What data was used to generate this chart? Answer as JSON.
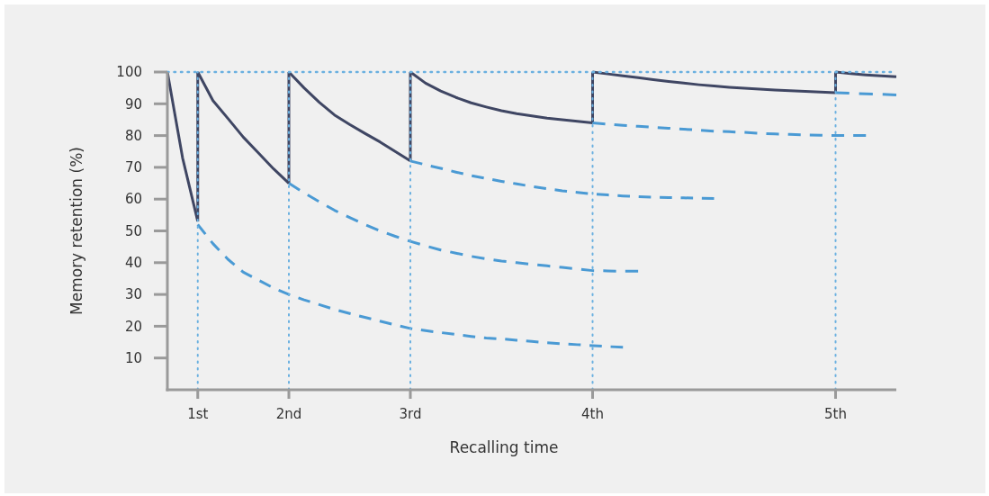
{
  "chart_data": {
    "type": "line",
    "xlabel": "Recalling time",
    "ylabel": "Memory retention (%)",
    "categories": [
      null,
      null,
      "1st",
      null,
      null,
      null,
      null,
      null,
      "2nd",
      null,
      null,
      null,
      null,
      null,
      null,
      null,
      "3rd",
      null,
      null,
      null,
      null,
      null,
      null,
      null,
      null,
      null,
      null,
      null,
      "4th",
      null,
      null,
      null,
      null,
      null,
      null,
      null,
      null,
      null,
      null,
      null,
      null,
      null,
      null,
      null,
      "5th",
      null,
      null,
      null,
      null
    ],
    "ylim": [
      0,
      100
    ],
    "yticks": [
      10,
      20,
      30,
      40,
      50,
      60,
      70,
      80,
      90,
      100
    ],
    "grid": false,
    "marker": "none",
    "ref_lines": [
      {
        "axis": "x",
        "value": "1st",
        "color": "#6ab0e0",
        "line_style": "dotted"
      },
      {
        "axis": "x",
        "value": "2nd",
        "color": "#6ab0e0",
        "line_style": "dotted"
      },
      {
        "axis": "x",
        "value": "3rd",
        "color": "#6ab0e0",
        "line_style": "dotted"
      },
      {
        "axis": "x",
        "value": "4th",
        "color": "#6ab0e0",
        "line_style": "dotted"
      },
      {
        "axis": "x",
        "value": "5th",
        "color": "#6ab0e0",
        "line_style": "dotted"
      },
      {
        "axis": "y",
        "value": 100,
        "color": "#6ab0e0",
        "line_style": "dotted"
      }
    ],
    "series": [
      {
        "type": "line",
        "color": "#3f4663",
        "line_style": "solid",
        "values": [
          100,
          73,
          53,
          null,
          null,
          null,
          null,
          null,
          null,
          null,
          null,
          null,
          null,
          null,
          null,
          null,
          null,
          null,
          null,
          null,
          null,
          null,
          null,
          null,
          null,
          null,
          null,
          null,
          null,
          null,
          null,
          null,
          null,
          null,
          null,
          null,
          null,
          null,
          null,
          null,
          null,
          null,
          null,
          null,
          null,
          null,
          null,
          null,
          null
        ]
      },
      {
        "color": "#3f4663",
        "line_style": "solid",
        "x": [
          "1st",
          "1st"
        ],
        "values": [
          53,
          100
        ]
      },
      {
        "color": "#3f4663",
        "line_style": "solid",
        "values": [
          null,
          null,
          100,
          91,
          85.3,
          79.5,
          74.5,
          69.5,
          65,
          null,
          null,
          null,
          null,
          null,
          null,
          null,
          null,
          null,
          null,
          null,
          null,
          null,
          null,
          null,
          null,
          null,
          null,
          null,
          null,
          null,
          null,
          null,
          null,
          null,
          null,
          null,
          null,
          null,
          null,
          null,
          null,
          null,
          null,
          null,
          null,
          null,
          null,
          null,
          null
        ]
      },
      {
        "color": "#3f4663",
        "line_style": "solid",
        "x": [
          "2nd",
          "2nd"
        ],
        "values": [
          65,
          100
        ]
      },
      {
        "color": "#3f4663",
        "line_style": "solid",
        "values": [
          null,
          null,
          null,
          null,
          null,
          null,
          null,
          null,
          100,
          95,
          90.5,
          86.5,
          83.5,
          80.7,
          78,
          75,
          72,
          null,
          null,
          null,
          null,
          null,
          null,
          null,
          null,
          null,
          null,
          null,
          null,
          null,
          null,
          null,
          null,
          null,
          null,
          null,
          null,
          null,
          null,
          null,
          null,
          null,
          null,
          null,
          null,
          null,
          null,
          null,
          null
        ]
      },
      {
        "color": "#3f4663",
        "line_style": "solid",
        "x": [
          "3rd",
          "3rd"
        ],
        "values": [
          72,
          100
        ]
      },
      {
        "color": "#3f4663",
        "line_style": "solid",
        "values": [
          null,
          null,
          null,
          null,
          null,
          null,
          null,
          null,
          null,
          null,
          null,
          null,
          null,
          null,
          null,
          null,
          100,
          96.5,
          94,
          92,
          90.3,
          89,
          87.8,
          86.9,
          86.2,
          85.5,
          85,
          84.5,
          84,
          null,
          null,
          null,
          null,
          null,
          null,
          null,
          null,
          null,
          null,
          null,
          null,
          null,
          null,
          null,
          null,
          null,
          null,
          null,
          null
        ]
      },
      {
        "color": "#3f4663",
        "line_style": "solid",
        "x": [
          "4th",
          "4th"
        ],
        "values": [
          84,
          100
        ]
      },
      {
        "color": "#3f4663",
        "line_style": "solid",
        "values": [
          null,
          null,
          null,
          null,
          null,
          null,
          null,
          null,
          null,
          null,
          null,
          null,
          null,
          null,
          null,
          null,
          null,
          null,
          null,
          null,
          null,
          null,
          null,
          null,
          null,
          null,
          null,
          null,
          100,
          99.4,
          98.8,
          98.2,
          97.6,
          97,
          96.5,
          96,
          95.6,
          95.2,
          94.9,
          94.6,
          94.3,
          94.1,
          93.9,
          93.7,
          93.5,
          null,
          null,
          null,
          null
        ]
      },
      {
        "color": "#3f4663",
        "line_style": "solid",
        "x": [
          "5th",
          "5th"
        ],
        "values": [
          93.5,
          100
        ]
      },
      {
        "color": "#3f4663",
        "line_style": "solid",
        "values": [
          null,
          null,
          null,
          null,
          null,
          null,
          null,
          null,
          null,
          null,
          null,
          null,
          null,
          null,
          null,
          null,
          null,
          null,
          null,
          null,
          null,
          null,
          null,
          null,
          null,
          null,
          null,
          null,
          null,
          null,
          null,
          null,
          null,
          null,
          null,
          null,
          null,
          null,
          null,
          null,
          null,
          null,
          null,
          null,
          100,
          99.5,
          99.1,
          98.8,
          98.5
        ]
      },
      {
        "color": "#4a9ad4",
        "line_style": "dashed",
        "values": [
          null,
          null,
          52,
          46,
          41,
          37,
          34.5,
          32,
          30,
          28.3,
          26.8,
          25.3,
          24,
          22.8,
          21.6,
          20.4,
          19.3,
          18.6,
          18,
          17.4,
          16.8,
          16.3,
          16,
          15.6,
          15.2,
          14.8,
          14.5,
          14.2,
          13.9,
          13.6,
          13.4,
          null,
          null,
          null,
          null,
          null,
          null,
          null,
          null,
          null,
          null,
          null,
          null,
          null,
          null,
          null,
          null,
          null,
          null
        ]
      },
      {
        "color": "#4a9ad4",
        "line_style": "dashed",
        "values": [
          null,
          null,
          null,
          null,
          null,
          null,
          null,
          null,
          65,
          62,
          59.2,
          56.5,
          54.2,
          52,
          50,
          48.3,
          46.7,
          45.3,
          44,
          43,
          42,
          41.2,
          40.5,
          40,
          39.5,
          39,
          38.5,
          38,
          37.5,
          37.4,
          37.3,
          37.3,
          null,
          null,
          null,
          null,
          null,
          null,
          null,
          null,
          null,
          null,
          null,
          null,
          null,
          null,
          null,
          null,
          null
        ]
      },
      {
        "color": "#4a9ad4",
        "line_style": "dashed",
        "values": [
          null,
          null,
          null,
          null,
          null,
          null,
          null,
          null,
          null,
          null,
          null,
          null,
          null,
          null,
          null,
          null,
          72,
          70.8,
          69.7,
          68.5,
          67.4,
          66.5,
          65.6,
          64.8,
          64,
          63.3,
          62.6,
          62.1,
          61.6,
          61.3,
          61,
          60.8,
          60.6,
          60.5,
          60.4,
          60.3,
          60.2,
          null,
          null,
          null,
          null,
          null,
          null,
          null,
          null,
          null,
          null,
          null,
          null
        ]
      },
      {
        "color": "#4a9ad4",
        "line_style": "dashed",
        "values": [
          null,
          null,
          null,
          null,
          null,
          null,
          null,
          null,
          null,
          null,
          null,
          null,
          null,
          null,
          null,
          null,
          null,
          null,
          null,
          null,
          null,
          null,
          null,
          null,
          null,
          null,
          null,
          null,
          84,
          83.6,
          83.2,
          82.9,
          82.6,
          82.3,
          82,
          81.7,
          81.4,
          81.2,
          81,
          80.7,
          80.5,
          80.4,
          80.2,
          80.1,
          80,
          80,
          80,
          null,
          null
        ]
      },
      {
        "color": "#4a9ad4",
        "line_style": "dashed",
        "values": [
          null,
          null,
          null,
          null,
          null,
          null,
          null,
          null,
          null,
          null,
          null,
          null,
          null,
          null,
          null,
          null,
          null,
          null,
          null,
          null,
          null,
          null,
          null,
          null,
          null,
          null,
          null,
          null,
          null,
          null,
          null,
          null,
          null,
          null,
          null,
          null,
          null,
          null,
          null,
          null,
          null,
          null,
          null,
          null,
          93.5,
          93.3,
          93.1,
          93,
          92.8
        ]
      }
    ]
  }
}
